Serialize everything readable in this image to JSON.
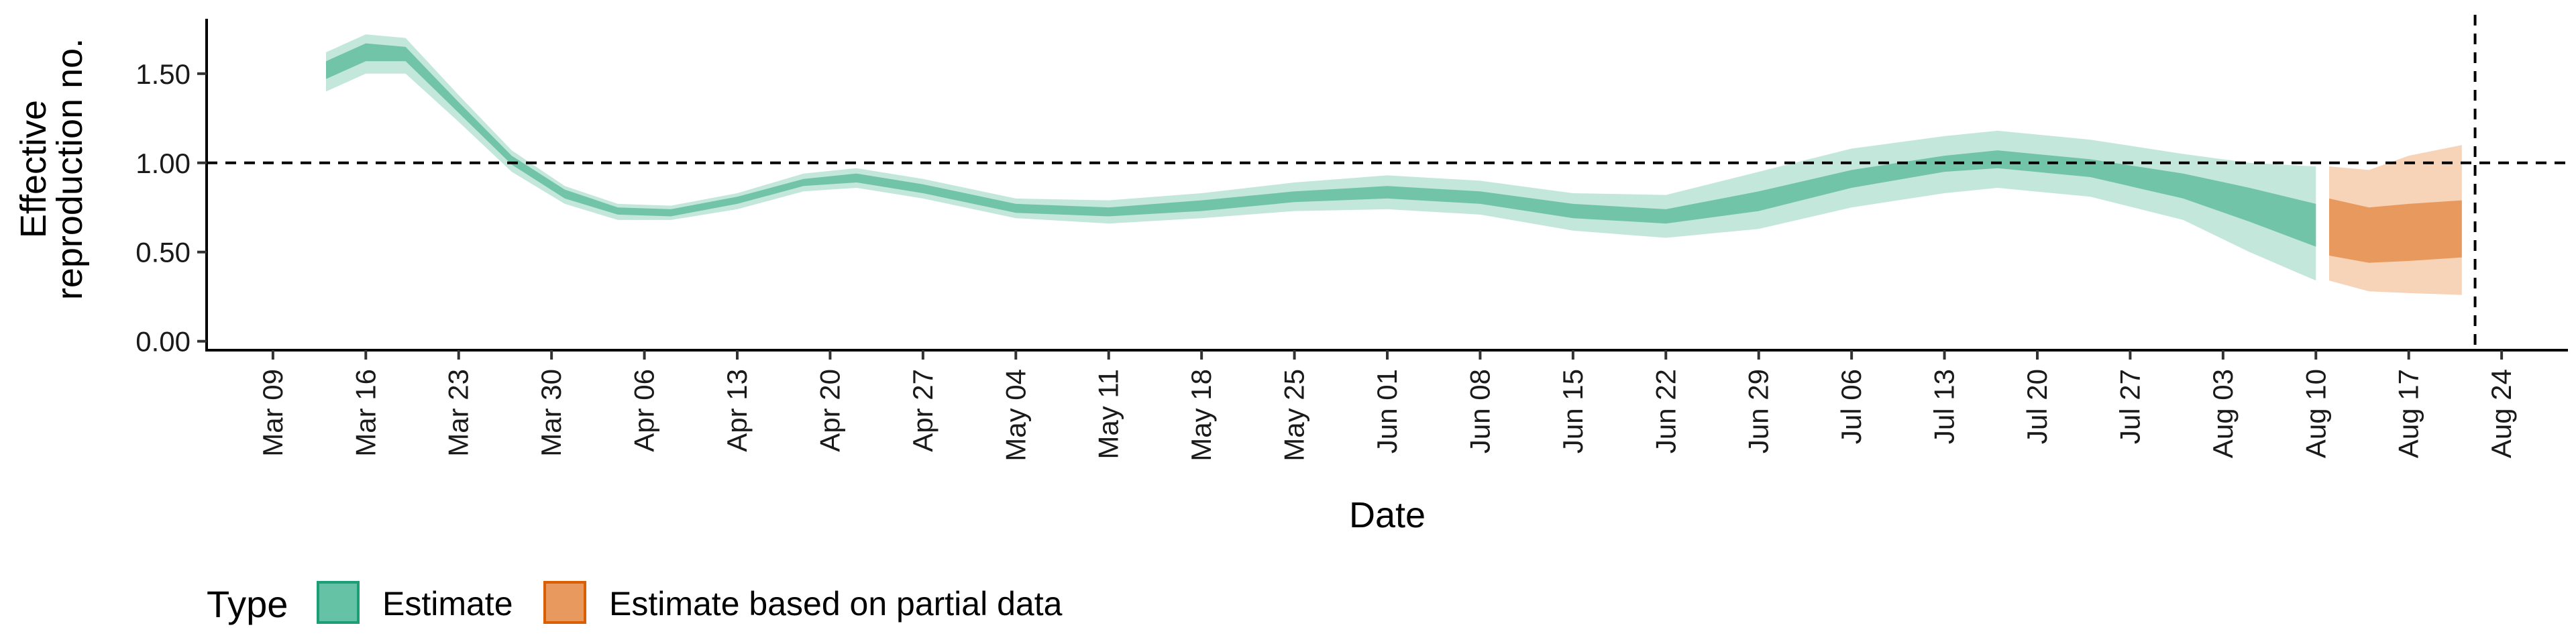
{
  "chart_data": {
    "type": "area",
    "xlabel": "Date",
    "ylabel_line1": "Effective",
    "ylabel_line2": "reproduction no.",
    "ylim": [
      -0.05,
      1.8
    ],
    "yticks": [
      0.0,
      0.5,
      1.0,
      1.5
    ],
    "ytick_labels": [
      "0.00",
      "0.50",
      "1.00",
      "1.50"
    ],
    "xlim": [
      "2020-03-04",
      "2020-08-29"
    ],
    "xticks": [
      "2020-03-09",
      "2020-03-16",
      "2020-03-23",
      "2020-03-30",
      "2020-04-06",
      "2020-04-13",
      "2020-04-20",
      "2020-04-27",
      "2020-05-04",
      "2020-05-11",
      "2020-05-18",
      "2020-05-25",
      "2020-06-01",
      "2020-06-08",
      "2020-06-15",
      "2020-06-22",
      "2020-06-29",
      "2020-07-06",
      "2020-07-13",
      "2020-07-20",
      "2020-07-27",
      "2020-08-03",
      "2020-08-10",
      "2020-08-17",
      "2020-08-24"
    ],
    "xtick_labels": [
      "Mar 09",
      "Mar 16",
      "Mar 23",
      "Mar 30",
      "Apr 06",
      "Apr 13",
      "Apr 20",
      "Apr 27",
      "May 04",
      "May 11",
      "May 18",
      "May 25",
      "Jun 01",
      "Jun 08",
      "Jun 15",
      "Jun 22",
      "Jun 29",
      "Jul 06",
      "Jul 13",
      "Jul 20",
      "Jul 27",
      "Aug 03",
      "Aug 10",
      "Aug 17",
      "Aug 24"
    ],
    "reference_hline": 1.0,
    "reference_vline": "2020-08-22",
    "legend": {
      "title": "Type",
      "position": "bottom-left",
      "items": [
        {
          "label": "Estimate",
          "fill": "#66c2a5",
          "stroke": "#1b9e77"
        },
        {
          "label": "Estimate based on partial data",
          "fill": "#e89a5e",
          "stroke": "#d95f02"
        }
      ]
    },
    "colors": {
      "estimate_outer": "#c4e7dc",
      "estimate_inner": "#72c4a8",
      "partial_outer": "#f7d3b8",
      "partial_inner": "#e89a5e"
    },
    "series": [
      {
        "name": "Estimate",
        "points": [
          {
            "x": "2020-03-13",
            "outer": [
              1.4,
              1.62
            ],
            "inner": [
              1.47,
              1.57
            ]
          },
          {
            "x": "2020-03-16",
            "outer": [
              1.5,
              1.72
            ],
            "inner": [
              1.57,
              1.67
            ]
          },
          {
            "x": "2020-03-19",
            "outer": [
              1.5,
              1.7
            ],
            "inner": [
              1.57,
              1.65
            ]
          },
          {
            "x": "2020-03-23",
            "outer": [
              1.23,
              1.38
            ],
            "inner": [
              1.28,
              1.34
            ]
          },
          {
            "x": "2020-03-27",
            "outer": [
              0.95,
              1.07
            ],
            "inner": [
              0.99,
              1.04
            ]
          },
          {
            "x": "2020-03-31",
            "outer": [
              0.77,
              0.87
            ],
            "inner": [
              0.8,
              0.85
            ]
          },
          {
            "x": "2020-04-04",
            "outer": [
              0.68,
              0.77
            ],
            "inner": [
              0.71,
              0.75
            ]
          },
          {
            "x": "2020-04-08",
            "outer": [
              0.68,
              0.76
            ],
            "inner": [
              0.7,
              0.74
            ]
          },
          {
            "x": "2020-04-13",
            "outer": [
              0.74,
              0.83
            ],
            "inner": [
              0.77,
              0.81
            ]
          },
          {
            "x": "2020-04-18",
            "outer": [
              0.84,
              0.94
            ],
            "inner": [
              0.87,
              0.91
            ]
          },
          {
            "x": "2020-04-22",
            "outer": [
              0.86,
              0.97
            ],
            "inner": [
              0.89,
              0.94
            ]
          },
          {
            "x": "2020-04-27",
            "outer": [
              0.8,
              0.91
            ],
            "inner": [
              0.83,
              0.88
            ]
          },
          {
            "x": "2020-05-04",
            "outer": [
              0.69,
              0.8
            ],
            "inner": [
              0.72,
              0.77
            ]
          },
          {
            "x": "2020-05-11",
            "outer": [
              0.66,
              0.79
            ],
            "inner": [
              0.7,
              0.75
            ]
          },
          {
            "x": "2020-05-18",
            "outer": [
              0.69,
              0.83
            ],
            "inner": [
              0.73,
              0.79
            ]
          },
          {
            "x": "2020-05-25",
            "outer": [
              0.73,
              0.89
            ],
            "inner": [
              0.78,
              0.84
            ]
          },
          {
            "x": "2020-06-01",
            "outer": [
              0.74,
              0.93
            ],
            "inner": [
              0.8,
              0.87
            ]
          },
          {
            "x": "2020-06-08",
            "outer": [
              0.71,
              0.9
            ],
            "inner": [
              0.77,
              0.84
            ]
          },
          {
            "x": "2020-06-15",
            "outer": [
              0.62,
              0.83
            ],
            "inner": [
              0.69,
              0.77
            ]
          },
          {
            "x": "2020-06-22",
            "outer": [
              0.58,
              0.82
            ],
            "inner": [
              0.66,
              0.74
            ]
          },
          {
            "x": "2020-06-29",
            "outer": [
              0.63,
              0.95
            ],
            "inner": [
              0.73,
              0.84
            ]
          },
          {
            "x": "2020-07-06",
            "outer": [
              0.75,
              1.08
            ],
            "inner": [
              0.86,
              0.96
            ]
          },
          {
            "x": "2020-07-13",
            "outer": [
              0.83,
              1.15
            ],
            "inner": [
              0.95,
              1.04
            ]
          },
          {
            "x": "2020-07-17",
            "outer": [
              0.86,
              1.18
            ],
            "inner": [
              0.97,
              1.07
            ]
          },
          {
            "x": "2020-07-24",
            "outer": [
              0.81,
              1.13
            ],
            "inner": [
              0.92,
              1.02
            ]
          },
          {
            "x": "2020-07-31",
            "outer": [
              0.68,
              1.05
            ],
            "inner": [
              0.8,
              0.94
            ]
          },
          {
            "x": "2020-08-05",
            "outer": [
              0.5,
              1.0
            ],
            "inner": [
              0.67,
              0.86
            ]
          },
          {
            "x": "2020-08-10",
            "outer": [
              0.34,
              0.98
            ],
            "inner": [
              0.53,
              0.77
            ]
          }
        ]
      },
      {
        "name": "Estimate based on partial data",
        "points": [
          {
            "x": "2020-08-11",
            "outer": [
              0.34,
              0.98
            ],
            "inner": [
              0.48,
              0.8
            ]
          },
          {
            "x": "2020-08-14",
            "outer": [
              0.28,
              0.96
            ],
            "inner": [
              0.44,
              0.75
            ]
          },
          {
            "x": "2020-08-17",
            "outer": [
              0.27,
              1.04
            ],
            "inner": [
              0.45,
              0.77
            ]
          },
          {
            "x": "2020-08-21",
            "outer": [
              0.26,
              1.1
            ],
            "inner": [
              0.47,
              0.79
            ]
          }
        ]
      }
    ]
  }
}
